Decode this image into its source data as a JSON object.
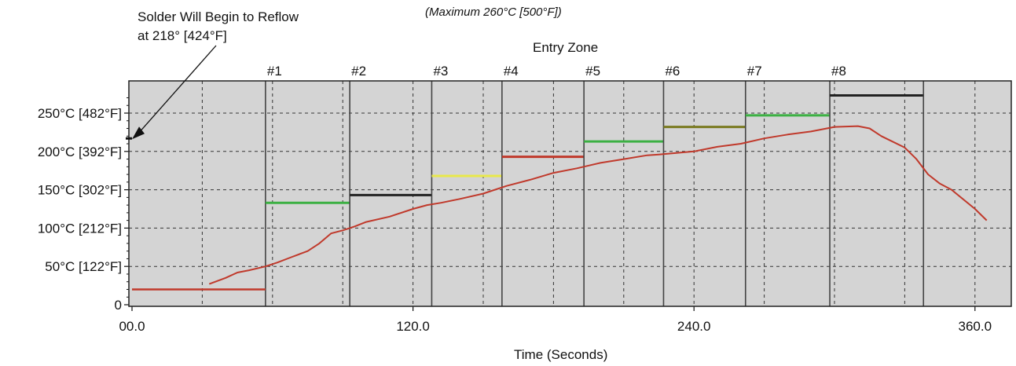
{
  "chart_data": {
    "type": "line",
    "title": "",
    "subtitle": "(Maximum 260°C [500°F])",
    "xlabel": "Time (Seconds)",
    "ylabel": "",
    "xlim": [
      0,
      360
    ],
    "ylim": [
      0,
      270
    ],
    "x_ticks": [
      {
        "value": 0,
        "label": "00.0"
      },
      {
        "value": 120,
        "label": "120.0"
      },
      {
        "value": 240,
        "label": "240.0"
      },
      {
        "value": 360,
        "label": "360.0"
      }
    ],
    "y_ticks": [
      {
        "value": 0,
        "label": "0"
      },
      {
        "value": 50,
        "label": "50°C [122°F]"
      },
      {
        "value": 100,
        "label": "100°C [212°F]"
      },
      {
        "value": 150,
        "label": "150°C [302°F]"
      },
      {
        "value": 200,
        "label": "200°C [392°F]"
      },
      {
        "value": 250,
        "label": "250°C [482°F]"
      }
    ],
    "grid": true,
    "background_color": "#d4d4d4",
    "annotations": {
      "reflow_line1": "Solder Will Begin to Reflow",
      "reflow_line2": "at 218° [424°F]",
      "reflow_temp": 218,
      "entry_zone": "Entry Zone"
    },
    "zones": [
      {
        "label": "#1",
        "start": 57,
        "end": 93,
        "setpoint": 133,
        "color": "#3cb043"
      },
      {
        "label": "#2",
        "start": 93,
        "end": 128,
        "setpoint": 143,
        "color": "#222222"
      },
      {
        "label": "#3",
        "start": 128,
        "end": 158,
        "setpoint": 168,
        "color": "#e8e84a"
      },
      {
        "label": "#4",
        "start": 158,
        "end": 193,
        "setpoint": 193,
        "color": "#c0392b"
      },
      {
        "label": "#5",
        "start": 193,
        "end": 227,
        "setpoint": 213,
        "color": "#3cb043"
      },
      {
        "label": "#6",
        "start": 227,
        "end": 262,
        "setpoint": 232,
        "color": "#7a7a20"
      },
      {
        "label": "#7",
        "start": 262,
        "end": 298,
        "setpoint": 247,
        "color": "#3cb043"
      },
      {
        "label": "#8",
        "start": 298,
        "end": 338,
        "setpoint": 273,
        "color": "#222222"
      }
    ],
    "entry_segment": {
      "x": [
        0,
        57
      ],
      "y": 20,
      "color": "#c0392b"
    },
    "series": [
      {
        "color": "#c0392b",
        "x": [
          33,
          40,
          45,
          50,
          57,
          62,
          68,
          75,
          80,
          85,
          90,
          95,
          100,
          110,
          120,
          126,
          132,
          140,
          150,
          160,
          170,
          180,
          190,
          200,
          210,
          220,
          225,
          240,
          250,
          260,
          270,
          280,
          290,
          300,
          310,
          315,
          320,
          330,
          335,
          340,
          345,
          350,
          360,
          365
        ],
        "y": [
          27,
          35,
          42,
          45,
          50,
          55,
          62,
          70,
          80,
          93,
          97,
          102,
          108,
          115,
          125,
          130,
          133,
          138,
          145,
          155,
          163,
          172,
          178,
          185,
          190,
          195,
          196,
          200,
          206,
          210,
          217,
          222,
          226,
          232,
          233,
          230,
          220,
          205,
          190,
          170,
          158,
          150,
          125,
          110
        ]
      }
    ]
  }
}
